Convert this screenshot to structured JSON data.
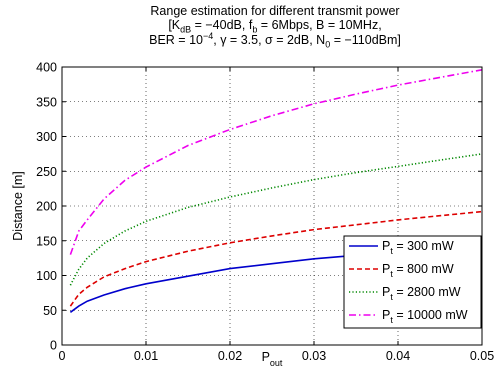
{
  "chart_data": {
    "type": "line",
    "title_line1": "Range estimation for different transmit power",
    "title_line2": {
      "open": "[K",
      "k_sub": "dB",
      "k_val": " = −40dB, f",
      "f_sub": "b",
      "f_val": " = 6Mbps, B = 10MHz,"
    },
    "title_line3": {
      "ber": "BER = 10",
      "ber_exp": "−4",
      "params": ", γ = 3.5, σ = 2dB, N",
      "n_sub": "0",
      "n_val": " = −110dBm]"
    },
    "xlabel": "P",
    "xlabel_sub": "out",
    "ylabel": "Distance [m]",
    "xlim": [
      0,
      0.05
    ],
    "ylim": [
      0,
      400
    ],
    "xticks": [
      0,
      0.01,
      0.02,
      0.03,
      0.04,
      0.05
    ],
    "yticks": [
      0,
      50,
      100,
      150,
      200,
      250,
      300,
      350,
      400
    ],
    "xtick_labels": [
      "0",
      "0.01",
      "0.02",
      "0.03",
      "0.04",
      "0.05"
    ],
    "ytick_labels": [
      "0",
      "50",
      "100",
      "150",
      "200",
      "250",
      "300",
      "350",
      "400"
    ],
    "grid": true,
    "legend_position": "bottom-right",
    "x": [
      0.001,
      0.002,
      0.003,
      0.005,
      0.0075,
      0.01,
      0.015,
      0.02,
      0.025,
      0.03,
      0.035,
      0.04,
      0.045,
      0.05
    ],
    "series": [
      {
        "name": "P",
        "name_sub": "t",
        "name_rest": " = 300 mW",
        "color": "#0000cc",
        "dash": "solid",
        "values": [
          47,
          56,
          63,
          72,
          81,
          88,
          99,
          110,
          117,
          124,
          129,
          133,
          137,
          141
        ]
      },
      {
        "name": "P",
        "name_sub": "t",
        "name_rest": " = 800 mW",
        "color": "#dd0000",
        "dash": "dashed",
        "values": [
          56,
          73,
          83,
          98,
          110,
          120,
          135,
          147,
          157,
          166,
          173,
          180,
          186,
          192
        ]
      },
      {
        "name": "P",
        "name_sub": "t",
        "name_rest": " = 2800 mW",
        "color": "#008800",
        "dash": "dotted",
        "values": [
          86,
          109,
          125,
          146,
          164,
          178,
          198,
          213,
          226,
          238,
          248,
          257,
          266,
          275
        ]
      },
      {
        "name": "P",
        "name_sub": "t",
        "name_rest": " = 10000 mW",
        "color": "#ee00ee",
        "dash": "dashdot",
        "values": [
          130,
          164,
          180,
          210,
          237,
          256,
          287,
          310,
          330,
          347,
          361,
          374,
          385,
          396
        ]
      }
    ]
  }
}
